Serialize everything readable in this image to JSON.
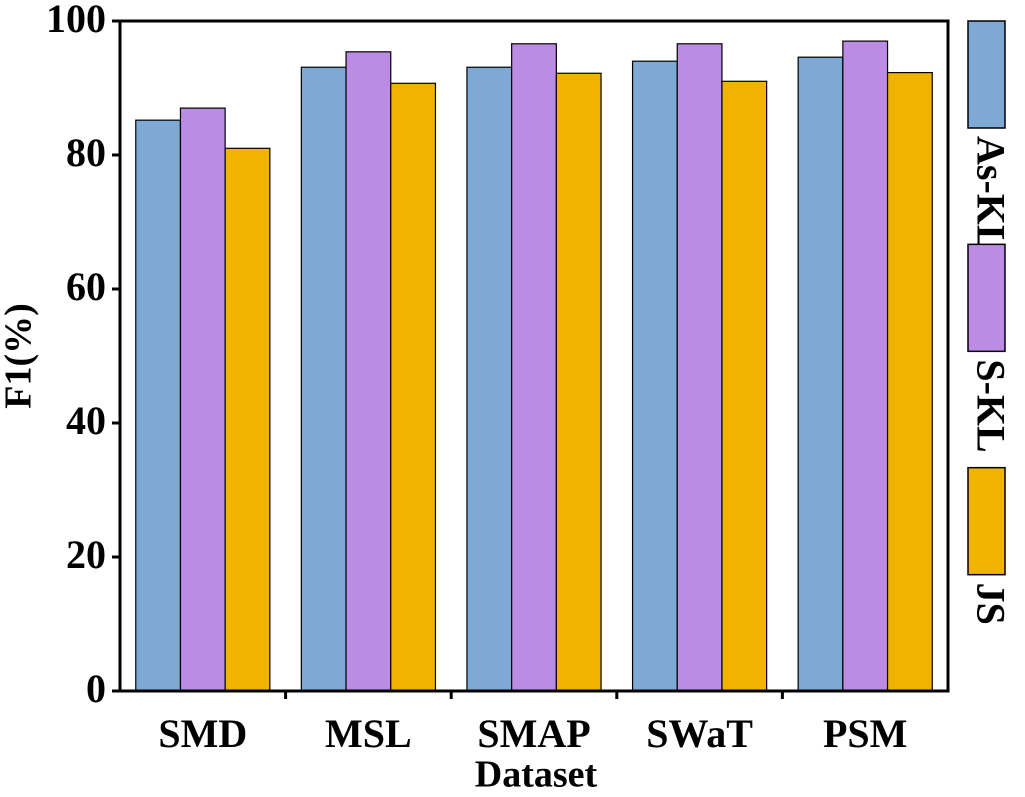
{
  "chart_data": {
    "type": "bar",
    "x_label": "Dataset",
    "y_label": "F1(%)",
    "categories": [
      "SMD",
      "MSL",
      "SMAP",
      "SWaT",
      "PSM"
    ],
    "series": [
      {
        "name": "As-KL",
        "color": "#7fa9d5",
        "values": [
          85.2,
          93.1,
          93.1,
          94.0,
          94.6
        ]
      },
      {
        "name": "S-KL",
        "color": "#bc8be3",
        "values": [
          87.0,
          95.4,
          96.6,
          96.6,
          97.0
        ]
      },
      {
        "name": "JS",
        "color": "#f0b400",
        "values": [
          81.0,
          90.7,
          92.2,
          91.0,
          92.3
        ]
      }
    ],
    "ylim": [
      0,
      100
    ],
    "yticks": [
      0,
      20,
      40,
      60,
      80,
      100
    ]
  }
}
